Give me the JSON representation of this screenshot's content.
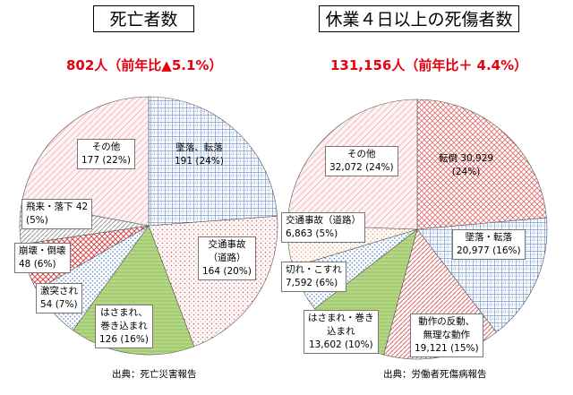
{
  "left": {
    "title": "死亡者数",
    "headline": "802人（前年比▲5.1%）",
    "source": "出典：死亡災害報告",
    "chart_data": {
      "type": "pie",
      "slices": [
        {
          "key": "fall",
          "name": "墜落、転落",
          "value": 191,
          "value_text": "191 (24%)",
          "pattern": "blue-check"
        },
        {
          "key": "traffic",
          "name": "交通事故\n（道路）",
          "value": 164,
          "value_text": "164 (20%)",
          "pattern": "red-dots"
        },
        {
          "key": "caught",
          "name": "はさまれ、\n巻き込まれ",
          "value": 126,
          "value_text": "126 (16%)",
          "pattern": "green-solid"
        },
        {
          "key": "struck",
          "name": "激突され",
          "value": 54,
          "value_text": "54 (7%)",
          "pattern": "blue-dots"
        },
        {
          "key": "collapse",
          "name": "崩壊・倒壊",
          "value": 48,
          "value_text": "48 (6%)",
          "pattern": "red-cross"
        },
        {
          "key": "flying",
          "name": "飛来・落下 42",
          "value": 42,
          "value_text": "(5%)",
          "pattern": "gray-diag"
        },
        {
          "key": "other",
          "name": "その他",
          "value": 177,
          "value_text": "177 (22%)",
          "pattern": "pink-diag"
        }
      ]
    }
  },
  "right": {
    "title": "休業４日以上の死傷者数",
    "headline": "131,156人（前年比＋ 4.4%）",
    "source": "出典：労働者死傷病報告",
    "chart_data": {
      "type": "pie",
      "slices": [
        {
          "key": "tumble",
          "name": "転倒 30,929",
          "value": 30929,
          "value_text": "(24%)",
          "pattern": "red-diag"
        },
        {
          "key": "fall",
          "name": "墜落・転落",
          "value": 20977,
          "value_text": "20,977 (16%)",
          "pattern": "blue-check"
        },
        {
          "key": "motion",
          "name": "動作の反動、\n無理な動作",
          "value": 19121,
          "value_text": "19,121 (15%)",
          "pattern": "red-vert"
        },
        {
          "key": "caught",
          "name": "はさまれ・巻き\n込まれ",
          "value": 13602,
          "value_text": "13,602 (10%)",
          "pattern": "green-solid"
        },
        {
          "key": "cut",
          "name": "切れ・こすれ",
          "value": 7592,
          "value_text": "7,592 (6%)",
          "pattern": "blue-dots"
        },
        {
          "key": "traffic",
          "name": "交通事故（道路）",
          "value": 6863,
          "value_text": "6,863 (5%)",
          "pattern": "orange-dots"
        },
        {
          "key": "other",
          "name": "その他",
          "value": 32072,
          "value_text": "32,072 (24%)",
          "pattern": "pink-diag"
        }
      ]
    }
  },
  "colors": {
    "headline": "#e8000e",
    "blue": "#3b6fc4",
    "red": "#e06a6a",
    "green": "#a6cc72",
    "pink": "#f2b0b6",
    "gray": "#9a9a9a",
    "orange": "#f0a070"
  }
}
